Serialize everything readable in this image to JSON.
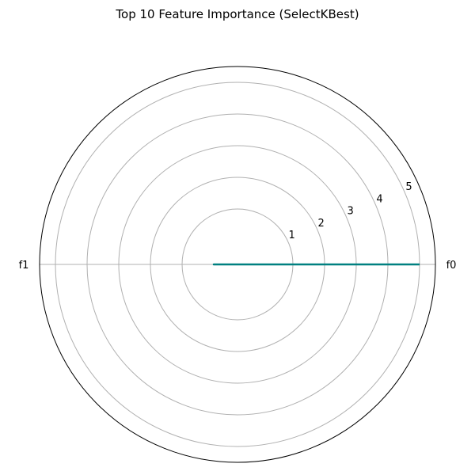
{
  "chart_data": {
    "type": "radar",
    "title": "Top 10 Feature Importance (SelectKBest)",
    "categories": [
      "f0",
      "f1"
    ],
    "series": [
      {
        "values": [
          5.0,
          0.0
        ],
        "color": "#008080"
      }
    ],
    "r_ticks": [
      1,
      2,
      3,
      4,
      5
    ],
    "r_min": -0.75,
    "r_max": 5.5,
    "grid": true
  }
}
